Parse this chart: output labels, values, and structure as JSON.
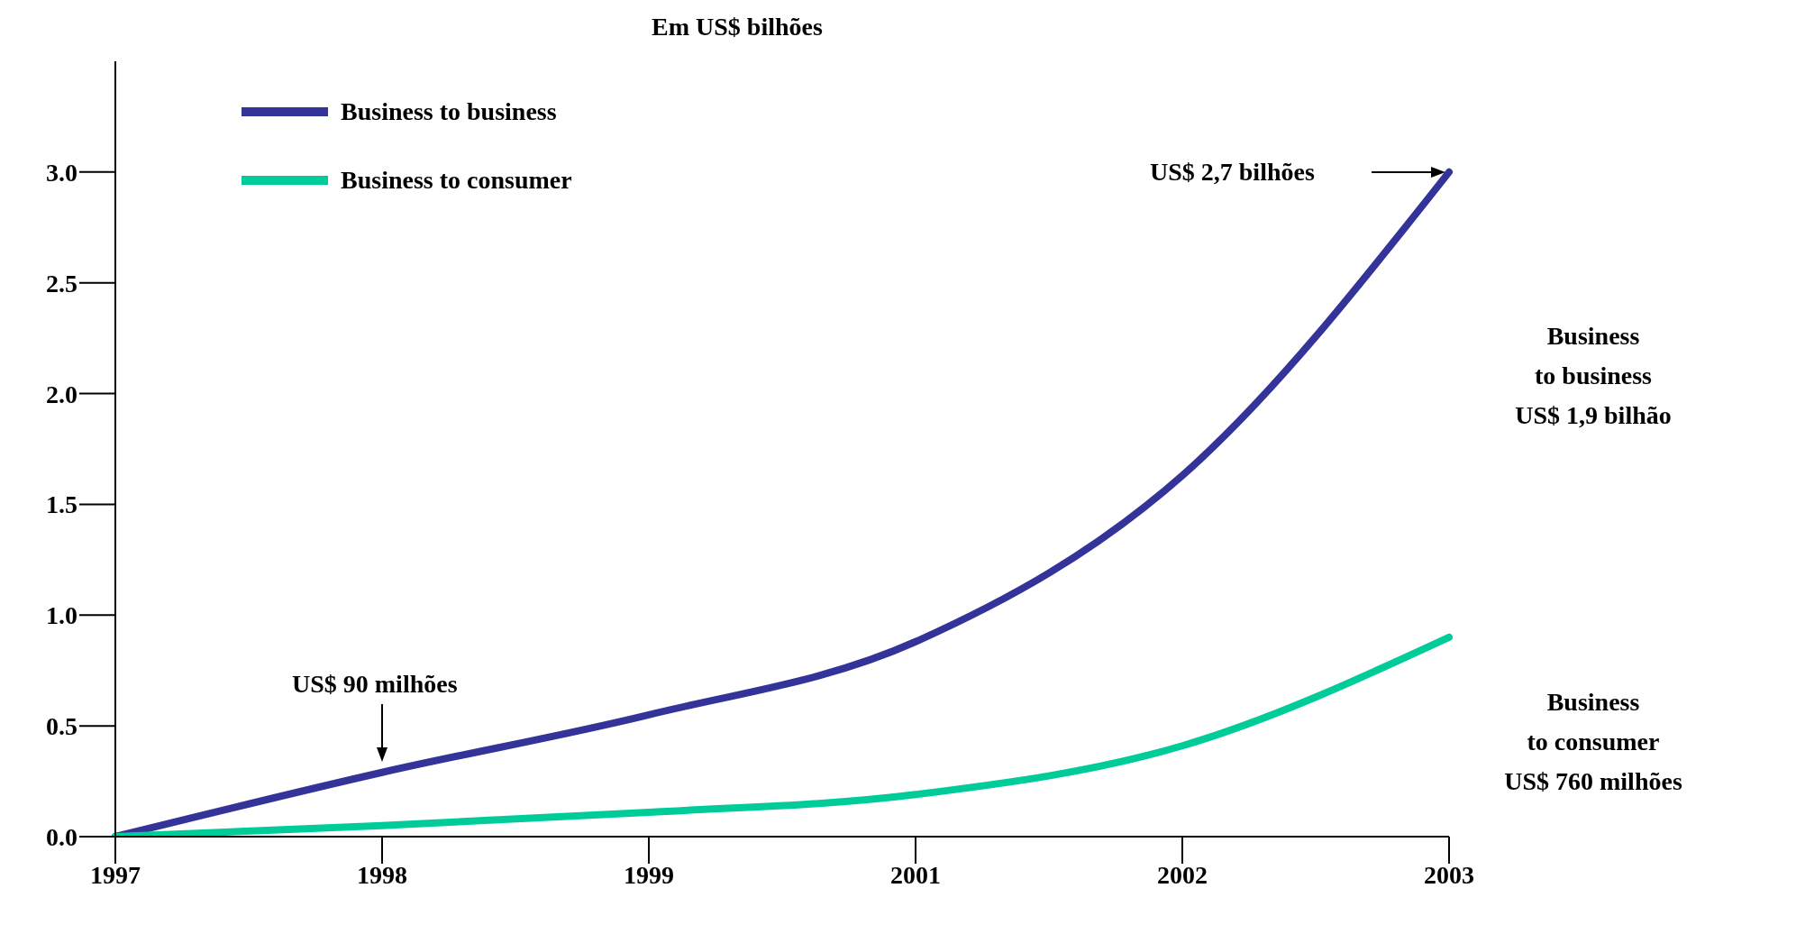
{
  "chart_data": {
    "type": "line",
    "title": "Em US$ bilhões",
    "categories": [
      "1997",
      "1998",
      "1999",
      "2001",
      "2002",
      "2003"
    ],
    "series": [
      {
        "name": "Business to business",
        "color": "#333399",
        "values": [
          0,
          0.29,
          0.55,
          0.88,
          1.63,
          3.0
        ]
      },
      {
        "name": "Business to consumer",
        "color": "#00cc99",
        "values": [
          0,
          0.05,
          0.11,
          0.19,
          0.41,
          0.9
        ]
      }
    ],
    "ylim": [
      0,
      3.5
    ],
    "yticks": [
      {
        "value": 0,
        "label": "0.0"
      },
      {
        "value": 0.5,
        "label": "0.5"
      },
      {
        "value": 1,
        "label": "1.0"
      },
      {
        "value": 1.5,
        "label": "1.5"
      },
      {
        "value": 2,
        "label": "2.0"
      },
      {
        "value": 2.5,
        "label": "2.5"
      },
      {
        "value": 3,
        "label": "3.0"
      }
    ],
    "annotations": [
      "US$ 2,7 bilhões",
      {
        "text": "US$ 90 milhões",
        "x": "1998",
        "y": 0.29
      },
      "Business\nto business\nUS$ 1,9 bilhão",
      "Business\nto consumer\nUS$ 760 milhões"
    ],
    "legend": "top left",
    "grid": false,
    "marker": "none",
    "line_style": "solid"
  }
}
